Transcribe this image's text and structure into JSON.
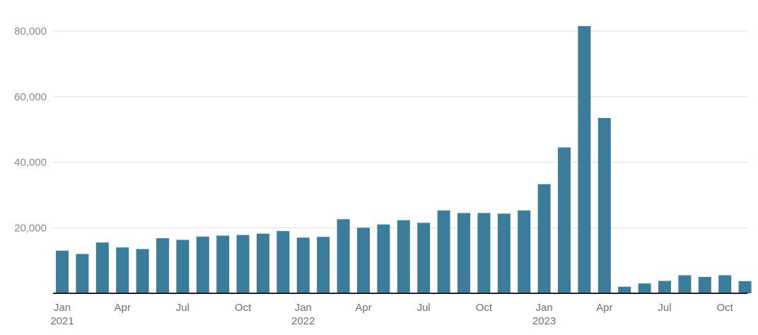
{
  "chart_data": {
    "type": "bar",
    "title": "",
    "xlabel": "",
    "ylabel": "",
    "ylim": [
      0,
      80000
    ],
    "grid": true,
    "legend": "none",
    "colors": {
      "bar": "#3a7c9a",
      "grid": "#dddddd",
      "axis": "#222222"
    },
    "categories": [
      "2021-01",
      "2021-02",
      "2021-03",
      "2021-04",
      "2021-05",
      "2021-06",
      "2021-07",
      "2021-08",
      "2021-09",
      "2021-10",
      "2021-11",
      "2021-12",
      "2022-01",
      "2022-02",
      "2022-03",
      "2022-04",
      "2022-05",
      "2022-06",
      "2022-07",
      "2022-08",
      "2022-09",
      "2022-10",
      "2022-11",
      "2022-12",
      "2023-01",
      "2023-02",
      "2023-03",
      "2023-04",
      "2023-05",
      "2023-06",
      "2023-07",
      "2023-08",
      "2023-09",
      "2023-10",
      "2023-11"
    ],
    "values": [
      13000,
      12000,
      15500,
      14000,
      13500,
      16800,
      16300,
      17300,
      17600,
      17800,
      18200,
      19000,
      17000,
      17200,
      22600,
      20000,
      21000,
      22300,
      21500,
      25300,
      24500,
      24500,
      24300,
      25300,
      33300,
      44500,
      81500,
      53500,
      2000,
      3000,
      3800,
      5500,
      5000,
      5500,
      3700
    ],
    "yticks": [
      {
        "value": 20000,
        "label": "20,000"
      },
      {
        "value": 40000,
        "label": "40,000"
      },
      {
        "value": 60000,
        "label": "60,000"
      },
      {
        "value": 80000,
        "label": "80,000"
      }
    ],
    "xticks": [
      {
        "index": 0,
        "label": "Jan",
        "year": "2021"
      },
      {
        "index": 3,
        "label": "Apr",
        "year": ""
      },
      {
        "index": 6,
        "label": "Jul",
        "year": ""
      },
      {
        "index": 9,
        "label": "Oct",
        "year": ""
      },
      {
        "index": 12,
        "label": "Jan",
        "year": "2022"
      },
      {
        "index": 15,
        "label": "Apr",
        "year": ""
      },
      {
        "index": 18,
        "label": "Jul",
        "year": ""
      },
      {
        "index": 21,
        "label": "Oct",
        "year": ""
      },
      {
        "index": 24,
        "label": "Jan",
        "year": "2023"
      },
      {
        "index": 27,
        "label": "Apr",
        "year": ""
      },
      {
        "index": 30,
        "label": "Jul",
        "year": ""
      },
      {
        "index": 33,
        "label": "Oct",
        "year": ""
      }
    ]
  }
}
